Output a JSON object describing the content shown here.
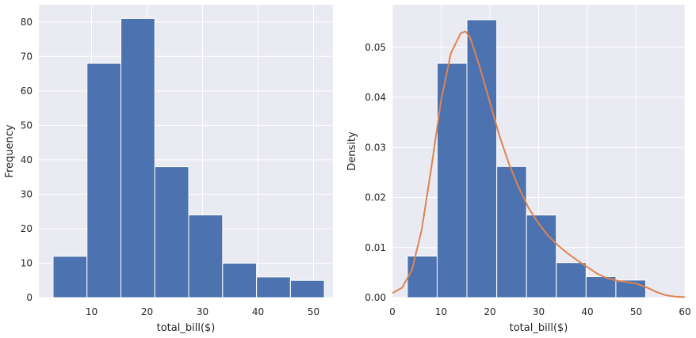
{
  "chart_data": [
    {
      "type": "bar",
      "title": "",
      "xlabel": "total_bill($)",
      "ylabel": "Frequency",
      "xlim": [
        0.5,
        53.5
      ],
      "ylim": [
        0,
        85
      ],
      "xticks": [
        10,
        20,
        30,
        40,
        50
      ],
      "yticks": [
        0,
        10,
        20,
        30,
        40,
        50,
        60,
        70,
        80
      ],
      "grid": true,
      "bin_edges": [
        3.07,
        9.18,
        15.29,
        21.4,
        27.51,
        33.62,
        39.73,
        45.84,
        51.95
      ],
      "values": [
        12,
        68,
        81,
        38,
        24,
        10,
        6,
        5
      ],
      "colors": {
        "bar": "#4c72b0",
        "background": "#eaeaf2",
        "grid": "#ffffff"
      }
    },
    {
      "type": "bar",
      "title": "",
      "xlabel": "total_bill($)",
      "ylabel": "Density",
      "xlim": [
        0,
        60
      ],
      "ylim": [
        0,
        0.0585
      ],
      "xticks": [
        0,
        10,
        20,
        30,
        40,
        50,
        60
      ],
      "yticks": [
        0.0,
        0.01,
        0.02,
        0.03,
        0.04,
        0.05
      ],
      "grid": true,
      "bin_edges": [
        3.07,
        9.18,
        15.29,
        21.4,
        27.51,
        33.62,
        39.73,
        45.84,
        51.95
      ],
      "values": [
        0.0083,
        0.0468,
        0.0555,
        0.0262,
        0.0165,
        0.007,
        0.0042,
        0.0035
      ],
      "kde": {
        "x": [
          0,
          2,
          4,
          6,
          8,
          10,
          12,
          14,
          15,
          16,
          18,
          20,
          22,
          24,
          26,
          28,
          30,
          32,
          34,
          36,
          38,
          40,
          42,
          44,
          46,
          48,
          50,
          52,
          54,
          56,
          58,
          60
        ],
        "y": [
          0.0009,
          0.002,
          0.0055,
          0.0135,
          0.026,
          0.0395,
          0.0488,
          0.0528,
          0.0532,
          0.0518,
          0.0458,
          0.039,
          0.0322,
          0.0265,
          0.0218,
          0.0178,
          0.0148,
          0.0123,
          0.0104,
          0.0088,
          0.0074,
          0.0061,
          0.0048,
          0.0039,
          0.0034,
          0.0031,
          0.0028,
          0.0021,
          0.0012,
          0.0005,
          0.0002,
          0.0001
        ]
      },
      "colors": {
        "bar": "#4c72b0",
        "line": "#dd8452",
        "background": "#eaeaf2",
        "grid": "#ffffff"
      }
    }
  ]
}
